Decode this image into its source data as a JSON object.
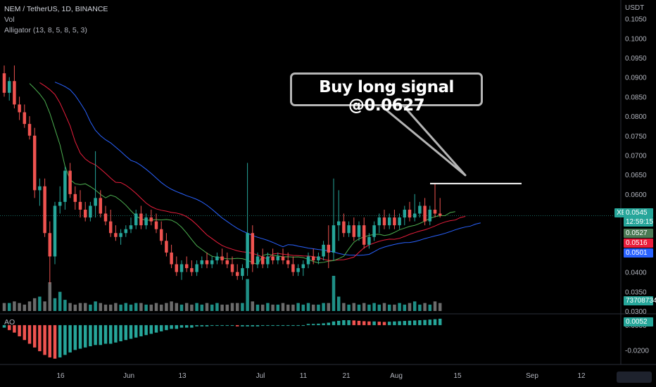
{
  "header": {
    "pair": "NEM / TetherUS, 1D, BINANCE",
    "vol_label": "Vol",
    "alligator_label": "Alligator (13, 8, 5, 8, 5, 3)",
    "ao_label": "AO"
  },
  "annotation": {
    "text": "Buy long signal @0.0627",
    "level": 0.0627
  },
  "price_axis": {
    "unit": "USDT",
    "ticks": [
      "0.1050",
      "0.1000",
      "0.0950",
      "0.0900",
      "0.0850",
      "0.0800",
      "0.0750",
      "0.0700",
      "0.0650",
      "0.0600",
      "0.0550",
      "0.0450",
      "0.0400",
      "0.0350",
      "0.0300"
    ],
    "tick_values": [
      0.105,
      0.1,
      0.095,
      0.09,
      0.085,
      0.08,
      0.075,
      0.07,
      0.065,
      0.06,
      0.055,
      0.045,
      0.04,
      0.035,
      0.03
    ]
  },
  "ao_axis": {
    "ticks": [
      "0.0000",
      "-0.0200"
    ],
    "tick_values": [
      0,
      -0.02
    ]
  },
  "time_axis": {
    "labels": [
      "16",
      "Jun",
      "13",
      "Jul",
      "11",
      "21",
      "Aug",
      "15",
      "Sep",
      "12"
    ]
  },
  "badges": {
    "symbol": "XEMUSDT",
    "last_price": "0.0545",
    "countdown": "12:59:15",
    "lips": "0.0527",
    "teeth": "0.0516",
    "jaw": "0.0501",
    "volume": "73708734",
    "ao": "0.0052"
  },
  "colors": {
    "up": "#26a69a",
    "down": "#ef5350",
    "jaw": "#2962ff",
    "teeth": "#e91e3c",
    "lips": "#4caf50",
    "volume_up": "#1f8f86",
    "volume_down": "#6b6b6b",
    "ao_up": "#26a69a",
    "ao_down": "#ef5350"
  },
  "chart_data": {
    "type": "candlestick",
    "title": "NEM / TetherUS, 1D, BINANCE",
    "ylim": [
      0.03,
      0.108
    ],
    "candles": [
      [
        0.091,
        0.093,
        0.085,
        0.086
      ],
      [
        0.086,
        0.09,
        0.084,
        0.089
      ],
      [
        0.089,
        0.093,
        0.082,
        0.083
      ],
      [
        0.083,
        0.085,
        0.079,
        0.081
      ],
      [
        0.081,
        0.083,
        0.077,
        0.078
      ],
      [
        0.078,
        0.08,
        0.074,
        0.075
      ],
      [
        0.075,
        0.077,
        0.059,
        0.061
      ],
      [
        0.061,
        0.064,
        0.057,
        0.062
      ],
      [
        0.062,
        0.064,
        0.049,
        0.05
      ],
      [
        0.05,
        0.053,
        0.037,
        0.044
      ],
      [
        0.044,
        0.058,
        0.042,
        0.057
      ],
      [
        0.057,
        0.062,
        0.055,
        0.058
      ],
      [
        0.058,
        0.067,
        0.056,
        0.066
      ],
      [
        0.066,
        0.068,
        0.059,
        0.06
      ],
      [
        0.06,
        0.062,
        0.056,
        0.058
      ],
      [
        0.058,
        0.061,
        0.054,
        0.056
      ],
      [
        0.056,
        0.058,
        0.053,
        0.054
      ],
      [
        0.054,
        0.058,
        0.053,
        0.057
      ],
      [
        0.057,
        0.071,
        0.054,
        0.059
      ],
      [
        0.059,
        0.061,
        0.054,
        0.055
      ],
      [
        0.055,
        0.057,
        0.052,
        0.053
      ],
      [
        0.053,
        0.056,
        0.049,
        0.05
      ],
      [
        0.05,
        0.052,
        0.048,
        0.049
      ],
      [
        0.049,
        0.051,
        0.047,
        0.05
      ],
      [
        0.05,
        0.052,
        0.049,
        0.051
      ],
      [
        0.051,
        0.054,
        0.05,
        0.052
      ],
      [
        0.052,
        0.056,
        0.051,
        0.055
      ],
      [
        0.055,
        0.057,
        0.051,
        0.052
      ],
      [
        0.052,
        0.055,
        0.051,
        0.054
      ],
      [
        0.054,
        0.056,
        0.052,
        0.053
      ],
      [
        0.053,
        0.055,
        0.05,
        0.051
      ],
      [
        0.051,
        0.053,
        0.047,
        0.048
      ],
      [
        0.048,
        0.05,
        0.044,
        0.045
      ],
      [
        0.045,
        0.047,
        0.041,
        0.042
      ],
      [
        0.042,
        0.044,
        0.039,
        0.04
      ],
      [
        0.04,
        0.043,
        0.038,
        0.042
      ],
      [
        0.042,
        0.044,
        0.04,
        0.041
      ],
      [
        0.041,
        0.043,
        0.039,
        0.04
      ],
      [
        0.04,
        0.043,
        0.039,
        0.042
      ],
      [
        0.042,
        0.044,
        0.041,
        0.043
      ],
      [
        0.043,
        0.045,
        0.041,
        0.042
      ],
      [
        0.042,
        0.044,
        0.041,
        0.043
      ],
      [
        0.043,
        0.045,
        0.042,
        0.044
      ],
      [
        0.044,
        0.046,
        0.042,
        0.043
      ],
      [
        0.043,
        0.045,
        0.041,
        0.042
      ],
      [
        0.042,
        0.044,
        0.039,
        0.04
      ],
      [
        0.04,
        0.042,
        0.038,
        0.039
      ],
      [
        0.039,
        0.042,
        0.038,
        0.041
      ],
      [
        0.041,
        0.068,
        0.039,
        0.05
      ],
      [
        0.05,
        0.052,
        0.04,
        0.042
      ],
      [
        0.042,
        0.045,
        0.041,
        0.044
      ],
      [
        0.044,
        0.046,
        0.041,
        0.042
      ],
      [
        0.042,
        0.045,
        0.041,
        0.044
      ],
      [
        0.044,
        0.046,
        0.042,
        0.043
      ],
      [
        0.043,
        0.045,
        0.042,
        0.044
      ],
      [
        0.044,
        0.046,
        0.042,
        0.043
      ],
      [
        0.043,
        0.045,
        0.041,
        0.042
      ],
      [
        0.042,
        0.044,
        0.039,
        0.04
      ],
      [
        0.04,
        0.042,
        0.039,
        0.041
      ],
      [
        0.041,
        0.043,
        0.039,
        0.042
      ],
      [
        0.042,
        0.045,
        0.041,
        0.044
      ],
      [
        0.044,
        0.046,
        0.042,
        0.043
      ],
      [
        0.043,
        0.045,
        0.042,
        0.044
      ],
      [
        0.044,
        0.048,
        0.043,
        0.047
      ],
      [
        0.047,
        0.052,
        0.041,
        0.045
      ],
      [
        0.045,
        0.064,
        0.043,
        0.052
      ],
      [
        0.052,
        0.061,
        0.048,
        0.053
      ],
      [
        0.053,
        0.055,
        0.049,
        0.05
      ],
      [
        0.05,
        0.053,
        0.049,
        0.052
      ],
      [
        0.052,
        0.054,
        0.048,
        0.049
      ],
      [
        0.049,
        0.053,
        0.048,
        0.052
      ],
      [
        0.052,
        0.054,
        0.046,
        0.047
      ],
      [
        0.047,
        0.05,
        0.046,
        0.049
      ],
      [
        0.049,
        0.053,
        0.048,
        0.052
      ],
      [
        0.052,
        0.055,
        0.05,
        0.054
      ],
      [
        0.054,
        0.056,
        0.051,
        0.052
      ],
      [
        0.052,
        0.055,
        0.051,
        0.054
      ],
      [
        0.054,
        0.056,
        0.051,
        0.052
      ],
      [
        0.052,
        0.055,
        0.051,
        0.054
      ],
      [
        0.054,
        0.057,
        0.052,
        0.056
      ],
      [
        0.056,
        0.058,
        0.053,
        0.054
      ],
      [
        0.054,
        0.06,
        0.053,
        0.055
      ],
      [
        0.055,
        0.058,
        0.054,
        0.057
      ],
      [
        0.057,
        0.059,
        0.052,
        0.053
      ],
      [
        0.053,
        0.057,
        0.052,
        0.056
      ],
      [
        0.056,
        0.0627,
        0.054,
        0.055
      ],
      [
        0.055,
        0.059,
        0.054,
        0.0545
      ]
    ],
    "volume": [
      5,
      5,
      6,
      5,
      4,
      6,
      8,
      9,
      6,
      18,
      8,
      12,
      7,
      5,
      4,
      5,
      5,
      4,
      6,
      5,
      4,
      4,
      5,
      4,
      5,
      4,
      5,
      5,
      4,
      4,
      5,
      4,
      5,
      6,
      5,
      4,
      5,
      4,
      5,
      4,
      5,
      4,
      5,
      4,
      4,
      5,
      5,
      5,
      20,
      6,
      4,
      4,
      5,
      4,
      4,
      5,
      4,
      4,
      5,
      4,
      5,
      4,
      4,
      5,
      5,
      22,
      9,
      5,
      4,
      5,
      4,
      5,
      4,
      5,
      4,
      5,
      4,
      4,
      5,
      4,
      5,
      6,
      4,
      5,
      4,
      6,
      5
    ],
    "ao": [
      -0.002,
      -0.004,
      -0.006,
      -0.009,
      -0.012,
      -0.015,
      -0.018,
      -0.021,
      -0.024,
      -0.026,
      -0.027,
      -0.026,
      -0.024,
      -0.022,
      -0.02,
      -0.019,
      -0.018,
      -0.017,
      -0.016,
      -0.016,
      -0.015,
      -0.015,
      -0.014,
      -0.013,
      -0.012,
      -0.011,
      -0.01,
      -0.009,
      -0.008,
      -0.007,
      -0.006,
      -0.005,
      -0.004,
      -0.003,
      -0.003,
      -0.002,
      -0.002,
      -0.002,
      -0.001,
      -0.001,
      -0.001,
      0.0,
      0.0,
      0.0,
      0.0,
      0.0,
      -0.001,
      -0.001,
      -0.001,
      -0.001,
      -0.001,
      0.0,
      0.0,
      0.0,
      0.0,
      0.0,
      0.0,
      0.0,
      0.0,
      0.0,
      0.001,
      0.001,
      0.0012,
      0.0015,
      0.002,
      0.003,
      0.0035,
      0.004,
      0.004,
      0.0038,
      0.0035,
      0.0032,
      0.003,
      0.003,
      0.0028,
      0.0026,
      0.0028,
      0.003,
      0.0032,
      0.0034,
      0.0036,
      0.0038,
      0.004,
      0.0042,
      0.0045,
      0.0048,
      0.0052
    ],
    "ao_ylim": [
      -0.03,
      0.008
    ]
  }
}
